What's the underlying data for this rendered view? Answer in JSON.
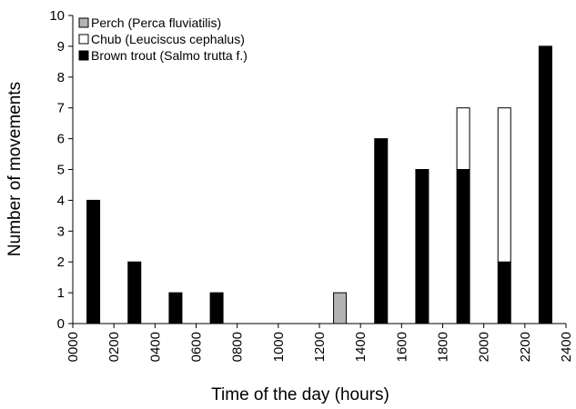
{
  "chart_data": {
    "type": "bar",
    "stacked": true,
    "xlabel": "Time of the day (hours)",
    "ylabel": "Number of movements",
    "x": [
      100,
      300,
      500,
      700,
      1300,
      1500,
      1700,
      1900,
      2100,
      2300
    ],
    "series": [
      {
        "name": "Perch (Perca fluviatilis)",
        "color": "#b3b3b3",
        "values": [
          0,
          0,
          0,
          0,
          1,
          0,
          0,
          0,
          0,
          0
        ]
      },
      {
        "name": "Chub (Leuciscus cephalus)",
        "color": "#ffffff",
        "values": [
          0,
          0,
          0,
          0,
          0,
          0,
          0,
          2,
          5,
          0
        ]
      },
      {
        "name": "Brown trout (Salmo trutta f.)",
        "color": "#000000",
        "values": [
          4,
          2,
          1,
          1,
          0,
          6,
          5,
          5,
          2,
          9
        ]
      }
    ],
    "xlim": [
      0,
      2400
    ],
    "xticks": [
      {
        "value": 0,
        "label": "0000"
      },
      {
        "value": 200,
        "label": "0200"
      },
      {
        "value": 400,
        "label": "0400"
      },
      {
        "value": 600,
        "label": "0600"
      },
      {
        "value": 800,
        "label": "0800"
      },
      {
        "value": 1000,
        "label": "1000"
      },
      {
        "value": 1200,
        "label": "1200"
      },
      {
        "value": 1400,
        "label": "1400"
      },
      {
        "value": 1600,
        "label": "1600"
      },
      {
        "value": 1800,
        "label": "1800"
      },
      {
        "value": 2000,
        "label": "2000"
      },
      {
        "value": 2200,
        "label": "2200"
      },
      {
        "value": 2400,
        "label": "2400"
      }
    ],
    "ylim": [
      0,
      10
    ],
    "yticks": [
      0,
      1,
      2,
      3,
      4,
      5,
      6,
      7,
      8,
      9,
      10
    ],
    "legend": "upper left"
  }
}
